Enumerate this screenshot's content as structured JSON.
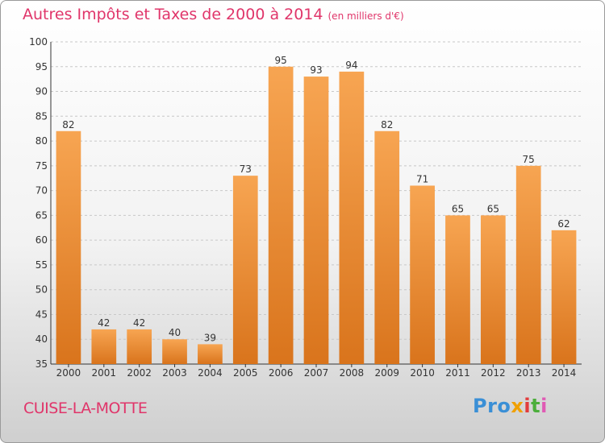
{
  "title": {
    "main": "Autres Impôts et Taxes de 2000 à 2014",
    "unit": "(en milliers d'€)"
  },
  "place_name": "CUISE-LA-MOTTE",
  "logo": {
    "text": "Proxiti",
    "parts": [
      "Pro",
      "x",
      "i",
      "t",
      "i"
    ]
  },
  "colors": {
    "title": "#e0356a",
    "bar_top": "#f7a552",
    "bar_bottom": "#d9741c",
    "grid": "#c8c8c8",
    "axis": "#333333"
  },
  "chart_data": {
    "type": "bar",
    "title": "Autres Impôts et Taxes de 2000 à 2014",
    "xlabel": "",
    "ylabel": "",
    "categories": [
      "2000",
      "2001",
      "2002",
      "2003",
      "2004",
      "2005",
      "2006",
      "2007",
      "2008",
      "2009",
      "2010",
      "2011",
      "2012",
      "2013",
      "2014"
    ],
    "values": [
      82,
      42,
      42,
      40,
      39,
      73,
      95,
      93,
      94,
      82,
      71,
      65,
      65,
      75,
      62
    ],
    "ylim": [
      35,
      100
    ],
    "yticks": [
      35,
      40,
      45,
      50,
      55,
      60,
      65,
      70,
      75,
      80,
      85,
      90,
      95,
      100
    ],
    "grid": true,
    "data_labels": true
  }
}
